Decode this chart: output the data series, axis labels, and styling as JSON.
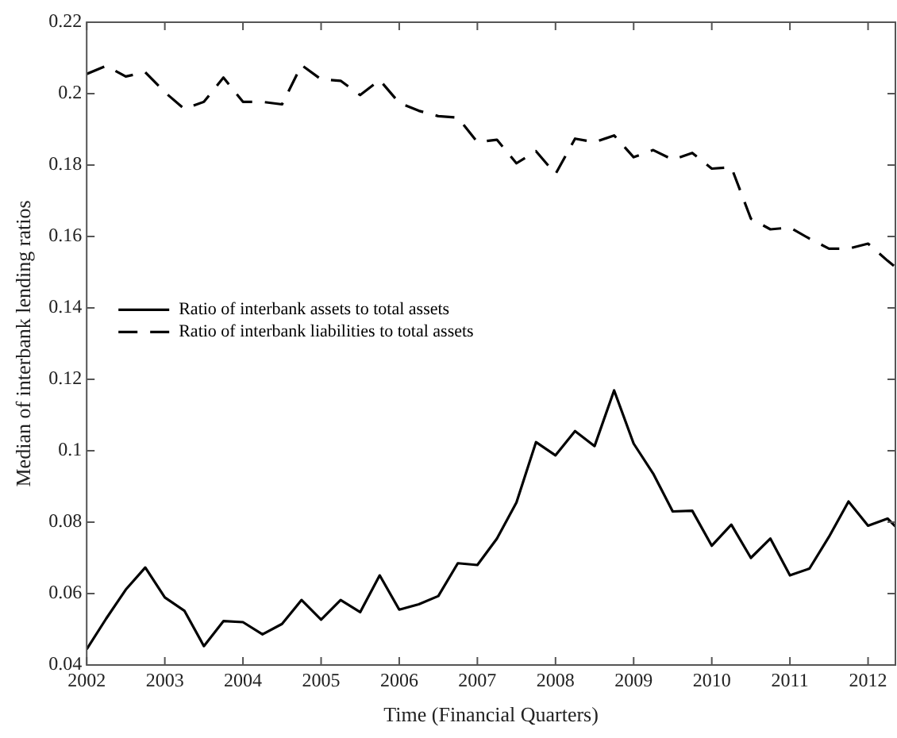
{
  "chart_data": {
    "type": "line",
    "xlabel": "Time (Financial Quarters)",
    "ylabel": "Median of interbank lending ratios",
    "x": [
      2002,
      2002.25,
      2002.5,
      2002.75,
      2003,
      2003.25,
      2003.5,
      2003.75,
      2004,
      2004.25,
      2004.5,
      2004.75,
      2005,
      2005.25,
      2005.5,
      2005.75,
      2006,
      2006.25,
      2006.5,
      2006.75,
      2007,
      2007.25,
      2007.5,
      2007.75,
      2008,
      2008.25,
      2008.5,
      2008.75,
      2009,
      2009.25,
      2009.5,
      2009.75,
      2010,
      2010.25,
      2010.5,
      2010.75,
      2011,
      2011.25,
      2011.5,
      2011.75,
      2012,
      2012.25,
      2012.35
    ],
    "series": [
      {
        "name": "Ratio of interbank assets to total assets",
        "color": "#000000",
        "line_style": "solid",
        "values": [
          0.0444,
          0.053,
          0.0611,
          0.0673,
          0.0589,
          0.0552,
          0.0453,
          0.0523,
          0.052,
          0.0486,
          0.0515,
          0.0582,
          0.0527,
          0.0582,
          0.0548,
          0.0651,
          0.0555,
          0.057,
          0.0593,
          0.0685,
          0.068,
          0.0754,
          0.0855,
          0.1024,
          0.0987,
          0.1055,
          0.1013,
          0.1169,
          0.102,
          0.0936,
          0.083,
          0.0832,
          0.0734,
          0.0793,
          0.07,
          0.0754,
          0.0651,
          0.067,
          0.0759,
          0.0858,
          0.079,
          0.081,
          0.0788
        ]
      },
      {
        "name": "Ratio of interbank liabilities to total assets",
        "color": "#000000",
        "line_style": "dashed",
        "values": [
          0.2055,
          0.2078,
          0.2048,
          0.206,
          0.2004,
          0.1957,
          0.1977,
          0.2045,
          0.1977,
          0.1977,
          0.197,
          0.208,
          0.204,
          0.2036,
          0.1996,
          0.2038,
          0.1974,
          0.1952,
          0.1937,
          0.1933,
          0.1864,
          0.1871,
          0.1805,
          0.1839,
          0.1775,
          0.1874,
          0.1864,
          0.1883,
          0.1822,
          0.1842,
          0.1815,
          0.1834,
          0.179,
          0.1794,
          0.165,
          0.162,
          0.1625,
          0.1594,
          0.1566,
          0.1566,
          0.158,
          0.1532,
          0.1514
        ]
      }
    ],
    "xlim": [
      2002,
      2012.35
    ],
    "xticks": [
      2002,
      2003,
      2004,
      2005,
      2006,
      2007,
      2008,
      2009,
      2010,
      2011,
      2012
    ],
    "ylim": [
      0.04,
      0.22
    ],
    "yticks": [
      0.04,
      0.06,
      0.08,
      0.1,
      0.12,
      0.14,
      0.16,
      0.18,
      0.2,
      0.22
    ],
    "grid": false,
    "legend": "center left",
    "marker": "none"
  }
}
